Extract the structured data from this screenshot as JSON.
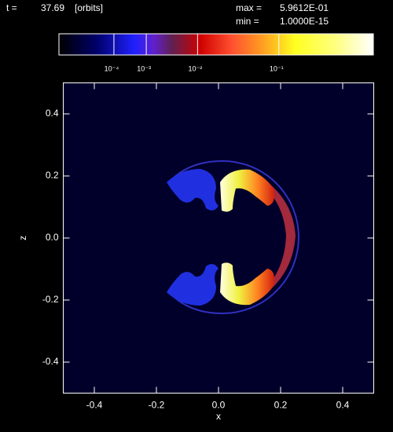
{
  "chart_data": {
    "type": "heatmap",
    "time_label": "t =",
    "time": 37.69,
    "time_unit": "[orbits]",
    "max_label": "max =",
    "max": {
      "value": 0.59612,
      "label": "5.9612E-01"
    },
    "min_label": "min =",
    "min": {
      "value": 1e-15,
      "label": "1.0000E-15"
    },
    "colorbar": {
      "scale": "power",
      "exponent": 0.2,
      "ticks": [
        {
          "value": 0.0001,
          "label": "10⁻⁴"
        },
        {
          "value": 0.001,
          "label": "10⁻³"
        },
        {
          "value": 0.01,
          "label": "10⁻²"
        },
        {
          "value": 0.1,
          "label": "10⁻¹"
        }
      ]
    },
    "xlabel": "x",
    "ylabel": "z",
    "xlim": [
      -0.5,
      0.5
    ],
    "ylim": [
      -0.5,
      0.5
    ],
    "xticks": [
      -0.4,
      -0.2,
      {
        "value": 0,
        "label": "0.0"
      },
      0.2,
      0.4
    ],
    "yticks": [
      -0.4,
      -0.2,
      {
        "value": 0,
        "label": "0.0"
      },
      0.2,
      0.4
    ]
  }
}
